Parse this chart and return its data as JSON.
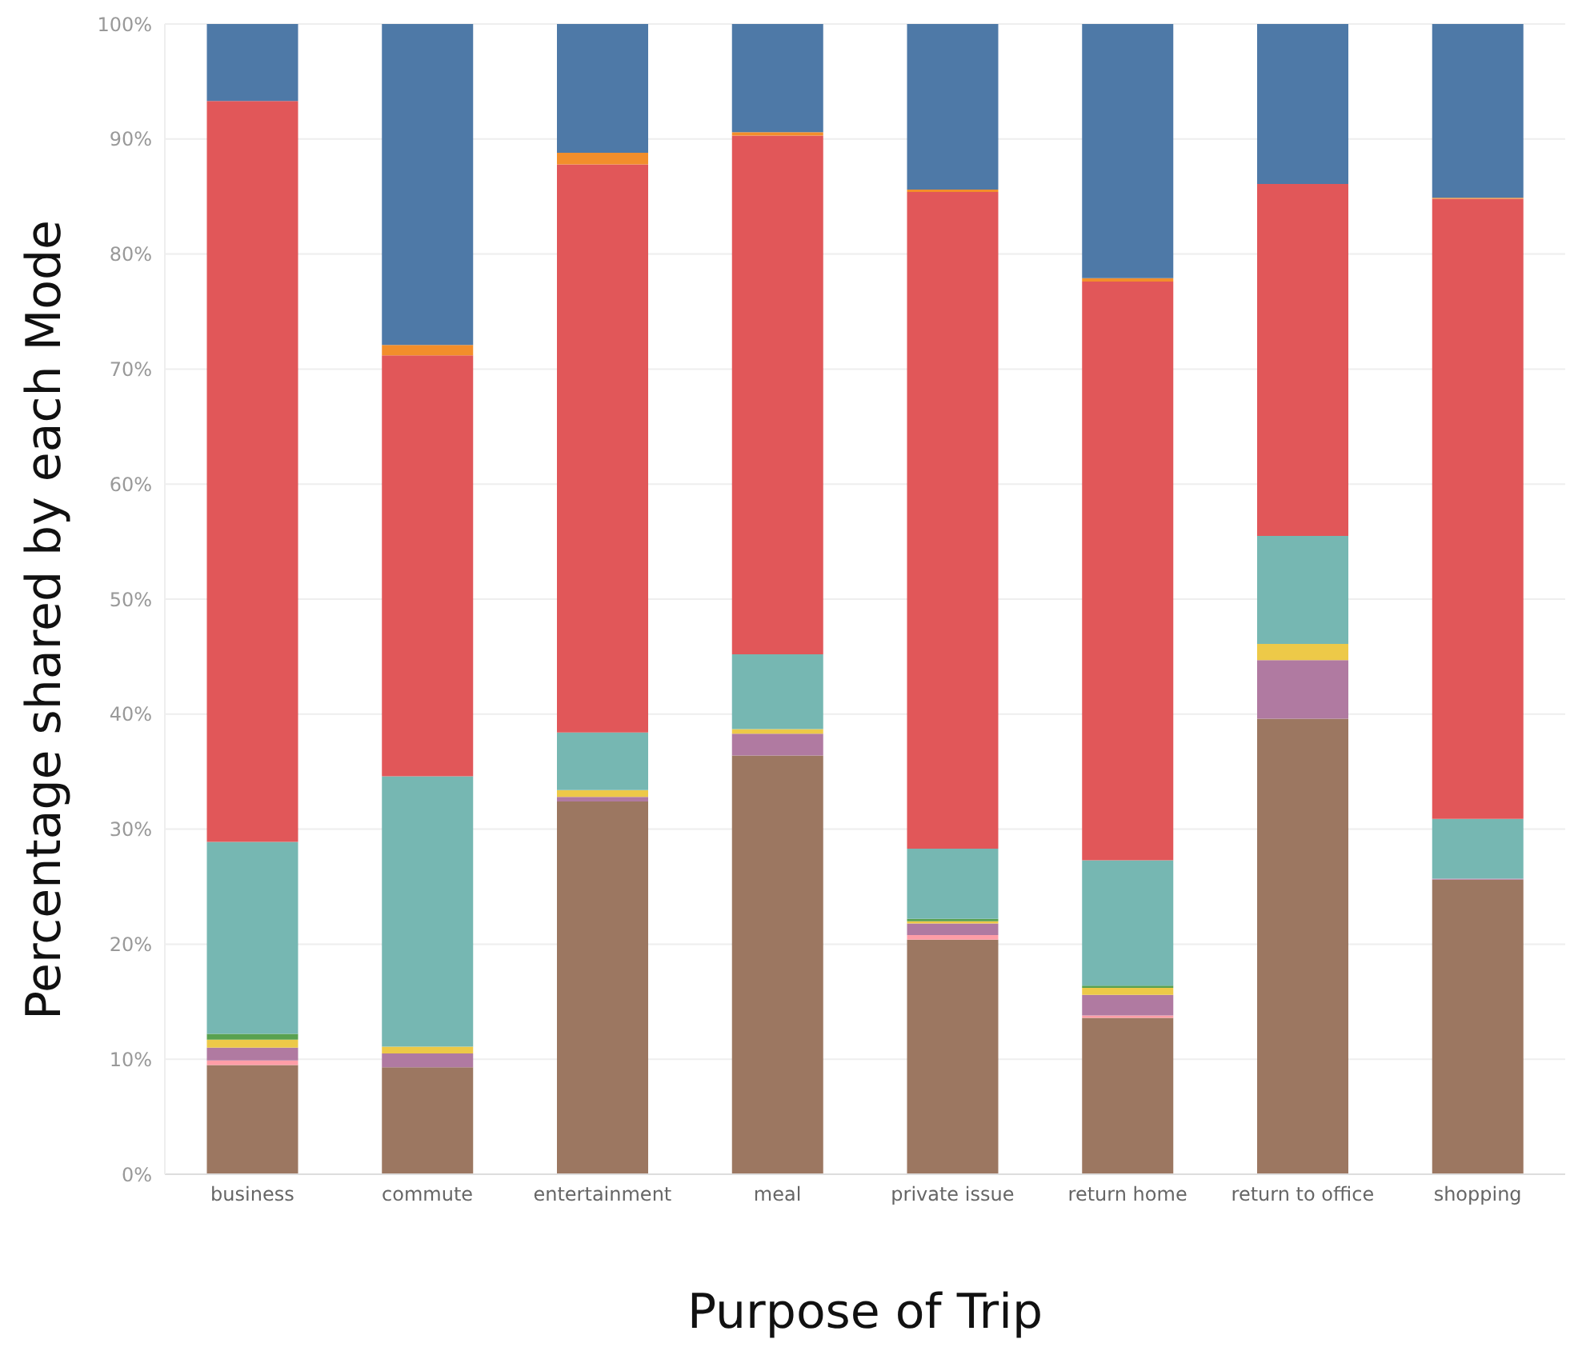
{
  "chart_data": {
    "type": "bar",
    "stacked": true,
    "xlabel": "Purpose of Trip",
    "ylabel": "Percentage shared by each Mode",
    "categories": [
      "business",
      "commute",
      "entertainment",
      "meal",
      "private issue",
      "return home",
      "return to office",
      "shopping"
    ],
    "series": [
      {
        "color": "#9c7761",
        "values": [
          9.5,
          9.3,
          32.4,
          36.4,
          20.4,
          13.6,
          39.6,
          25.6
        ]
      },
      {
        "color": "#ff9da7",
        "values": [
          0.4,
          0,
          0,
          0,
          0.4,
          0.2,
          0,
          0
        ]
      },
      {
        "color": "#b07aa1",
        "values": [
          1.1,
          1.2,
          0.4,
          1.9,
          1.0,
          1.8,
          5.1,
          0.1
        ]
      },
      {
        "color": "#edc948",
        "values": [
          0.7,
          0.6,
          0.6,
          0.4,
          0.2,
          0.6,
          1.4,
          0
        ]
      },
      {
        "color": "#59a14f",
        "values": [
          0.5,
          0,
          0,
          0,
          0.2,
          0.2,
          0,
          0
        ]
      },
      {
        "color": "#76b7b2",
        "values": [
          16.7,
          23.5,
          5.0,
          6.5,
          6.1,
          10.9,
          9.4,
          5.2
        ]
      },
      {
        "color": "#e15759",
        "values": [
          64.4,
          36.6,
          49.4,
          45.1,
          57.1,
          50.3,
          30.6,
          53.9
        ]
      },
      {
        "color": "#f28e2b",
        "values": [
          0,
          0.9,
          1.0,
          0.3,
          0.2,
          0.3,
          0,
          0.1
        ]
      },
      {
        "color": "#4e79a7",
        "values": [
          6.7,
          27.9,
          11.2,
          9.4,
          14.4,
          22.1,
          13.9,
          15.1
        ]
      }
    ],
    "ylim": [
      0,
      100
    ],
    "yticks": [
      {
        "value": 0,
        "label": "0%"
      },
      {
        "value": 10,
        "label": "10%"
      },
      {
        "value": 20,
        "label": "20%"
      },
      {
        "value": 30,
        "label": "30%"
      },
      {
        "value": 40,
        "label": "40%"
      },
      {
        "value": 50,
        "label": "50%"
      },
      {
        "value": 60,
        "label": "60%"
      },
      {
        "value": 70,
        "label": "70%"
      },
      {
        "value": 80,
        "label": "80%"
      },
      {
        "value": 90,
        "label": "90%"
      },
      {
        "value": 100,
        "label": "100%"
      }
    ],
    "grid": "y",
    "legend": false
  }
}
